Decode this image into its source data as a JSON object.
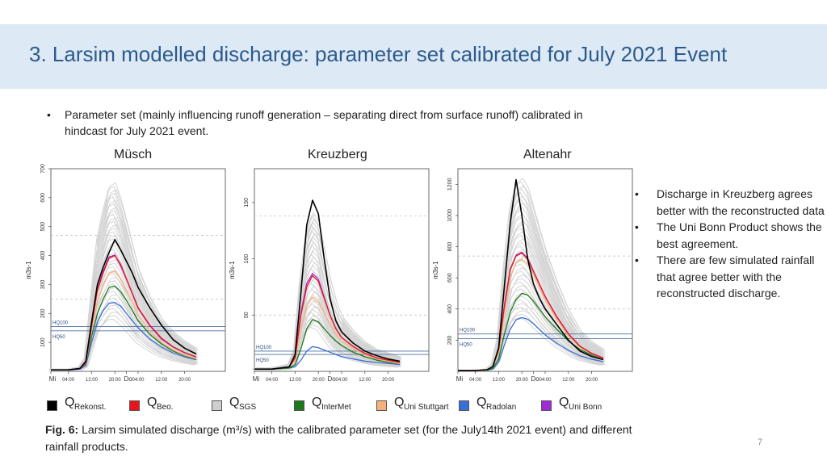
{
  "title": "3. Larsim modelled discharge: parameter set calibrated for July 2021 Event",
  "intro_bullet": "Parameter set (mainly influencing runoff generation – separating direct from surface runoff) calibrated in hindcast for July 2021 event.",
  "notes": [
    "Discharge in Kreuzberg agrees better with the reconstructed data",
    "The Uni Bonn Product shows the best agreement.",
    "There are few simulated rainfall that agree better with the reconstructed discharge."
  ],
  "legend": [
    {
      "q": "Q",
      "sub": "Rekonst.",
      "color": "#000000"
    },
    {
      "q": "Q",
      "sub": "Beo.",
      "color": "#e8141b"
    },
    {
      "q": "Q",
      "sub": "SGS",
      "color": "#cfcfcf"
    },
    {
      "q": "Q",
      "sub": "InterMet",
      "color": "#1a7a1a"
    },
    {
      "q": "Q",
      "sub": "Uni Stuttgart",
      "color": "#f5b27a"
    },
    {
      "q": "Q",
      "sub": "Radolan",
      "color": "#3a6fd8"
    },
    {
      "q": "Q",
      "sub": "Uni Bonn",
      "color": "#a02ad8"
    }
  ],
  "caption": {
    "label": "Fig. 6:",
    "text": " Larsim simulated discharge (m³/s) with the calibrated parameter set (for the July14th 2021 event) and different rainfall products."
  },
  "page_number": "7",
  "chart_data": [
    {
      "type": "line",
      "title": "Müsch",
      "ylabel": "m3s-1",
      "ylim": [
        0,
        700
      ],
      "yticks": [
        100,
        200,
        300,
        400,
        500,
        600,
        700
      ],
      "xlim": [
        0,
        60
      ],
      "xticks": [
        {
          "x": 0,
          "label": "Mi"
        },
        {
          "x": 6,
          "label": "04:00"
        },
        {
          "x": 14,
          "label": "12:00"
        },
        {
          "x": 22,
          "label": "20:00"
        },
        {
          "x": 26,
          "label": "Do"
        },
        {
          "x": 30,
          "label": "04:00"
        },
        {
          "x": 38,
          "label": "12:00"
        },
        {
          "x": 46,
          "label": "20:00"
        }
      ],
      "hlines": [
        {
          "y": 155,
          "label": "HQ100"
        },
        {
          "y": 140,
          "label": "HQ50"
        }
      ],
      "dashed_lines": [
        470,
        250
      ],
      "x": [
        0,
        6,
        10,
        12,
        14,
        16,
        18,
        20,
        22,
        24,
        26,
        28,
        30,
        34,
        38,
        42,
        46,
        50
      ],
      "series": [
        {
          "name": "Rekonst.",
          "color": "#000000",
          "values": [
            5,
            5,
            10,
            35,
            170,
            300,
            360,
            410,
            455,
            420,
            380,
            340,
            290,
            220,
            160,
            110,
            80,
            60
          ]
        },
        {
          "name": "Beo.",
          "color": "#e8141b",
          "values": [
            5,
            5,
            10,
            30,
            160,
            280,
            340,
            390,
            400,
            370,
            320,
            270,
            220,
            160,
            115,
            85,
            65,
            50
          ]
        },
        {
          "name": "Uni Bonn",
          "color": "#a02ad8",
          "values": [
            5,
            5,
            10,
            30,
            155,
            285,
            345,
            395,
            402,
            365,
            318,
            268,
            218,
            158,
            112,
            84,
            64,
            49
          ]
        },
        {
          "name": "Uni Stuttgart",
          "color": "#f5b27a",
          "values": [
            5,
            5,
            10,
            28,
            140,
            240,
            300,
            340,
            345,
            320,
            280,
            240,
            195,
            140,
            100,
            74,
            56,
            44
          ]
        },
        {
          "name": "InterMet",
          "color": "#1a7a1a",
          "values": [
            5,
            5,
            10,
            25,
            120,
            200,
            250,
            290,
            295,
            275,
            245,
            210,
            175,
            128,
            95,
            70,
            54,
            42
          ]
        },
        {
          "name": "Radolan",
          "color": "#3a6fd8",
          "values": [
            5,
            5,
            8,
            20,
            100,
            170,
            210,
            235,
            238,
            225,
            200,
            175,
            150,
            112,
            84,
            64,
            50,
            40
          ]
        }
      ]
    },
    {
      "type": "line",
      "title": "Kreuzberg",
      "ylabel": "m3s-1",
      "ylim": [
        0,
        180
      ],
      "yticks": [
        50,
        100,
        150
      ],
      "xlim": [
        0,
        60
      ],
      "xticks": [
        {
          "x": 0,
          "label": "Mi"
        },
        {
          "x": 6,
          "label": "04:00"
        },
        {
          "x": 14,
          "label": "12:00"
        },
        {
          "x": 22,
          "label": "20:00"
        },
        {
          "x": 26,
          "label": "Do"
        },
        {
          "x": 30,
          "label": "04:00"
        },
        {
          "x": 38,
          "label": "12:00"
        },
        {
          "x": 46,
          "label": "20:00"
        }
      ],
      "hlines": [
        {
          "y": 18,
          "label": "HQ100"
        },
        {
          "y": 15,
          "label": "HQ50"
        }
      ],
      "dashed_lines": [
        138,
        50
      ],
      "x": [
        0,
        6,
        12,
        14,
        16,
        18,
        20,
        22,
        24,
        26,
        28,
        30,
        34,
        38,
        42,
        46,
        50
      ],
      "series": [
        {
          "name": "Rekonst.",
          "color": "#000000",
          "values": [
            2,
            2,
            4,
            15,
            70,
            130,
            152,
            140,
            100,
            65,
            45,
            35,
            25,
            18,
            14,
            11,
            9
          ]
        },
        {
          "name": "Beo.",
          "color": "#e8141b",
          "values": [
            2,
            2,
            4,
            12,
            50,
            75,
            85,
            80,
            65,
            50,
            38,
            30,
            22,
            16,
            12,
            10,
            8
          ]
        },
        {
          "name": "Uni Bonn",
          "color": "#a02ad8",
          "values": [
            2,
            2,
            4,
            12,
            52,
            78,
            87,
            82,
            66,
            50,
            38,
            30,
            22,
            16,
            12,
            10,
            8
          ]
        },
        {
          "name": "Uni Stuttgart",
          "color": "#f5b27a",
          "values": [
            2,
            2,
            4,
            10,
            38,
            58,
            66,
            62,
            52,
            42,
            33,
            27,
            20,
            15,
            11,
            9,
            7
          ]
        },
        {
          "name": "InterMet",
          "color": "#1a7a1a",
          "values": [
            2,
            2,
            3,
            6,
            20,
            38,
            46,
            44,
            38,
            32,
            27,
            23,
            17,
            13,
            10,
            8,
            7
          ]
        },
        {
          "name": "Radolan",
          "color": "#3a6fd8",
          "values": [
            2,
            2,
            3,
            4,
            10,
            18,
            22,
            21,
            19,
            17,
            15,
            13,
            11,
            9,
            8,
            7,
            6
          ]
        }
      ]
    },
    {
      "type": "line",
      "title": "Altenahr",
      "ylabel": "m3s-1",
      "ylim": [
        0,
        1300
      ],
      "yticks": [
        200,
        400,
        600,
        800,
        1000,
        1200
      ],
      "xlim": [
        0,
        60
      ],
      "xticks": [
        {
          "x": 0,
          "label": "Mi"
        },
        {
          "x": 6,
          "label": "04:00"
        },
        {
          "x": 14,
          "label": "12:00"
        },
        {
          "x": 22,
          "label": "20:00"
        },
        {
          "x": 26,
          "label": "Do"
        },
        {
          "x": 30,
          "label": "04:00"
        },
        {
          "x": 38,
          "label": "12:00"
        },
        {
          "x": 46,
          "label": "20:00"
        }
      ],
      "hlines": [
        {
          "y": 240,
          "label": "HQ100"
        },
        {
          "y": 210,
          "label": "HQ50"
        }
      ],
      "dashed_lines": [
        740,
        400
      ],
      "x": [
        0,
        6,
        10,
        12,
        14,
        16,
        18,
        20,
        22,
        24,
        26,
        28,
        30,
        34,
        38,
        42,
        46,
        50
      ],
      "series": [
        {
          "name": "Rekonst.",
          "color": "#000000",
          "values": [
            5,
            5,
            10,
            30,
            150,
            550,
            950,
            1230,
            1000,
            720,
            560,
            470,
            400,
            300,
            200,
            130,
            95,
            75
          ]
        },
        {
          "name": "Beo.",
          "color": "#e8141b",
          "values": [
            5,
            5,
            10,
            30,
            140,
            420,
            650,
            740,
            760,
            720,
            640,
            560,
            480,
            350,
            240,
            160,
            115,
            85
          ]
        },
        {
          "name": "Uni Bonn",
          "color": "#a02ad8",
          "values": [
            5,
            5,
            10,
            30,
            140,
            425,
            655,
            745,
            765,
            725,
            642,
            562,
            482,
            352,
            241,
            161,
            116,
            86
          ]
        },
        {
          "name": "Uni Stuttgart",
          "color": "#f5b27a",
          "values": [
            5,
            5,
            10,
            28,
            120,
            380,
            600,
            700,
            720,
            690,
            620,
            540,
            460,
            335,
            230,
            155,
            112,
            83
          ]
        },
        {
          "name": "InterMet",
          "color": "#1a7a1a",
          "values": [
            5,
            5,
            8,
            20,
            80,
            240,
            380,
            460,
            500,
            490,
            450,
            400,
            350,
            270,
            195,
            140,
            105,
            80
          ]
        },
        {
          "name": "Radolan",
          "color": "#3a6fd8",
          "values": [
            5,
            5,
            8,
            15,
            60,
            170,
            270,
            330,
            345,
            335,
            305,
            270,
            235,
            180,
            135,
            100,
            78,
            62
          ]
        }
      ]
    }
  ]
}
